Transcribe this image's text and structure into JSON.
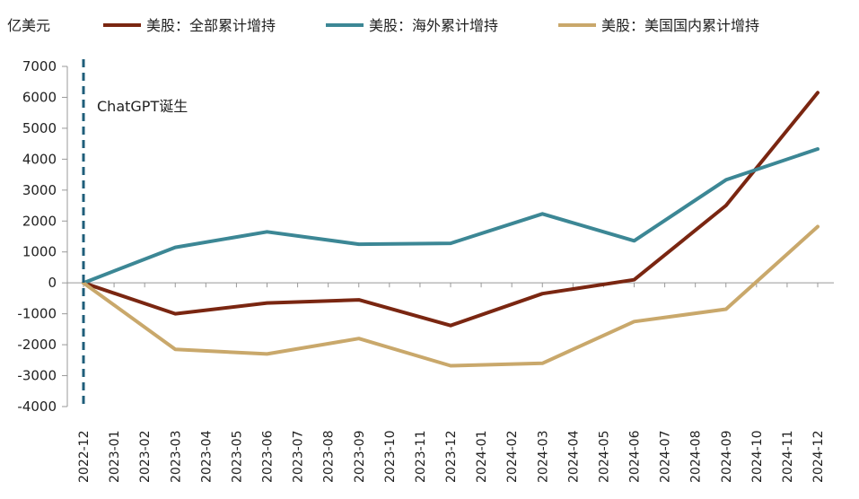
{
  "chart_data": {
    "type": "line",
    "unit_label": "亿美元",
    "annotation": "ChatGPT诞生",
    "annotation_x": "2022-12",
    "x": [
      "2022-12",
      "2023-01",
      "2023-02",
      "2023-03",
      "2023-04",
      "2023-05",
      "2023-06",
      "2023-07",
      "2023-08",
      "2023-09",
      "2023-10",
      "2023-11",
      "2023-12",
      "2024-01",
      "2024-02",
      "2024-03",
      "2024-04",
      "2024-05",
      "2024-06",
      "2024-07",
      "2024-08",
      "2024-09",
      "2024-10",
      "2024-11",
      "2024-12"
    ],
    "ylim": [
      -4000,
      7000
    ],
    "yticks": [
      7000,
      6000,
      5000,
      4000,
      3000,
      2000,
      1000,
      0,
      -1000,
      -2000,
      -3000,
      -4000
    ],
    "series": [
      {
        "name": "美股：全部累计增持",
        "color": "#7a2611",
        "points": [
          [
            "2022-12",
            0
          ],
          [
            "2023-03",
            -1000
          ],
          [
            "2023-06",
            -650
          ],
          [
            "2023-09",
            -550
          ],
          [
            "2023-12",
            -1380
          ],
          [
            "2024-03",
            -350
          ],
          [
            "2024-06",
            100
          ],
          [
            "2024-09",
            2500
          ],
          [
            "2024-12",
            6150
          ]
        ]
      },
      {
        "name": "美股：海外累计增持",
        "color": "#3c8795",
        "points": [
          [
            "2022-12",
            0
          ],
          [
            "2023-03",
            1150
          ],
          [
            "2023-06",
            1650
          ],
          [
            "2023-09",
            1250
          ],
          [
            "2023-12",
            1280
          ],
          [
            "2024-03",
            2230
          ],
          [
            "2024-06",
            1360
          ],
          [
            "2024-09",
            3330
          ],
          [
            "2024-12",
            4330
          ]
        ]
      },
      {
        "name": "美股：美国国内累计增持",
        "color": "#c9a86b",
        "points": [
          [
            "2022-12",
            0
          ],
          [
            "2023-03",
            -2150
          ],
          [
            "2023-06",
            -2300
          ],
          [
            "2023-09",
            -1800
          ],
          [
            "2023-12",
            -2680
          ],
          [
            "2024-03",
            -2600
          ],
          [
            "2024-06",
            -1250
          ],
          [
            "2024-09",
            -850
          ],
          [
            "2024-12",
            1820
          ]
        ]
      }
    ]
  }
}
